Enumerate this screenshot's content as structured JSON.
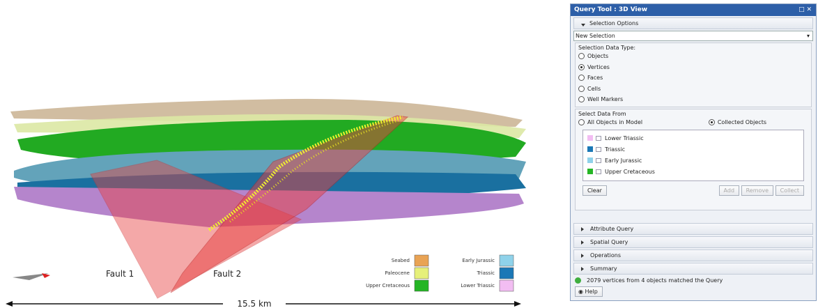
{
  "view": {
    "fault_labels": [
      "Fault 1",
      "Fault 2"
    ],
    "scale": "15.5 km",
    "legend": [
      {
        "label": "Seabed",
        "color": "#e9a354"
      },
      {
        "label": "Paleocene",
        "color": "#e6f07a"
      },
      {
        "label": "Upper Cretaceous",
        "color": "#25b525"
      },
      {
        "label": "Early Jurassic",
        "color": "#8fd2ea"
      },
      {
        "label": "Triassic",
        "color": "#1b78b6"
      },
      {
        "label": "Lower Triassic",
        "color": "#f2bdf2"
      }
    ]
  },
  "panel": {
    "title": "Query Tool : 3D View",
    "selection_options": "Selection Options",
    "mode": "New Selection",
    "data_type_label": "Selection Data Type:",
    "data_types": [
      {
        "label": "Objects",
        "checked": false
      },
      {
        "label": "Vertices",
        "checked": true
      },
      {
        "label": "Faces",
        "checked": false
      },
      {
        "label": "Cells",
        "checked": false
      },
      {
        "label": "Well Markers",
        "checked": false
      }
    ],
    "data_from_label": "Select Data From",
    "data_from": [
      {
        "label": "All Objects in Model",
        "checked": false
      },
      {
        "label": "Collected Objects",
        "checked": true
      }
    ],
    "objects": [
      {
        "label": "Lower Triassic",
        "color": "#f2bdf2"
      },
      {
        "label": "Triassic",
        "color": "#1b78b6"
      },
      {
        "label": "Early Jurassic",
        "color": "#8fd2ea"
      },
      {
        "label": "Upper Cretaceous",
        "color": "#25b525"
      }
    ],
    "buttons": {
      "clear": "Clear",
      "add": "Add",
      "remove": "Remove",
      "collect": "Collect"
    },
    "sections": [
      "Attribute Query",
      "Spatial Query",
      "Operations",
      "Summary"
    ],
    "status": "2079 vertices from 4 objects matched the Query",
    "help": "Help"
  }
}
